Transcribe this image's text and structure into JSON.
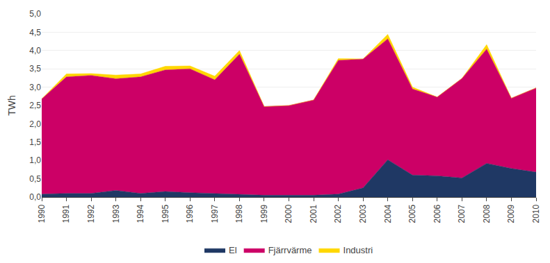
{
  "chart_data": {
    "type": "area",
    "stacked": true,
    "x": [
      1990,
      1991,
      1992,
      1993,
      1994,
      1995,
      1996,
      1997,
      1998,
      1999,
      2000,
      2001,
      2002,
      2003,
      2004,
      2005,
      2006,
      2007,
      2008,
      2009,
      2010
    ],
    "series": [
      {
        "name": "El",
        "color": "#1F3864",
        "values": [
          0.08,
          0.1,
          0.1,
          0.18,
          0.1,
          0.15,
          0.12,
          0.1,
          0.08,
          0.05,
          0.05,
          0.05,
          0.08,
          0.25,
          1.02,
          0.6,
          0.58,
          0.52,
          0.92,
          0.78,
          0.68
        ]
      },
      {
        "name": "Fjärrvärme",
        "color": "#CC0066",
        "values": [
          2.6,
          3.18,
          3.22,
          3.05,
          3.18,
          3.32,
          3.38,
          3.1,
          3.82,
          2.42,
          2.45,
          2.6,
          3.65,
          3.52,
          3.3,
          2.35,
          2.15,
          2.72,
          3.12,
          1.92,
          2.3
        ]
      },
      {
        "name": "Industri",
        "color": "#FFD700",
        "values": [
          0.0,
          0.08,
          0.05,
          0.1,
          0.08,
          0.1,
          0.08,
          0.1,
          0.1,
          0.0,
          0.0,
          0.0,
          0.05,
          0.0,
          0.12,
          0.05,
          0.0,
          0.0,
          0.12,
          0.0,
          0.0
        ]
      }
    ],
    "ylabel": "TWh",
    "xlim": [
      1990,
      2010
    ],
    "xticks": [
      1990,
      1991,
      1992,
      1993,
      1994,
      1995,
      1996,
      1997,
      1998,
      1999,
      2000,
      2001,
      2002,
      2003,
      2004,
      2005,
      2006,
      2007,
      2008,
      2009,
      2010
    ],
    "ylim": [
      0,
      5.0
    ],
    "yticks": [
      {
        "value": 0.0,
        "label": "0,0"
      },
      {
        "value": 0.5,
        "label": "0,5"
      },
      {
        "value": 1.0,
        "label": "1,0"
      },
      {
        "value": 1.5,
        "label": "1,5"
      },
      {
        "value": 2.0,
        "label": "2,0"
      },
      {
        "value": 2.5,
        "label": "2,5"
      },
      {
        "value": 3.0,
        "label": "3,0"
      },
      {
        "value": 3.5,
        "label": "3,5"
      },
      {
        "value": 4.0,
        "label": "4,0"
      },
      {
        "value": 4.5,
        "label": "4,5"
      },
      {
        "value": 5.0,
        "label": "5,0"
      }
    ],
    "grid": true,
    "legend": "bottom"
  }
}
